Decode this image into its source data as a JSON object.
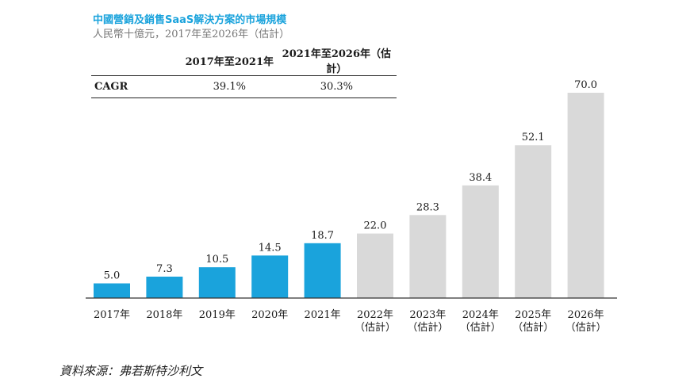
{
  "chart_data": {
    "type": "bar",
    "title": "中國營銷及銷售SaaS解決方案的市場規模",
    "subtitle": "人民幣十億元，2017年至2026年（估計）",
    "categories": [
      "2017年",
      "2018年",
      "2019年",
      "2020年",
      "2021年",
      "2022年\n（估計）",
      "2023年\n（估計）",
      "2024年\n（估計）",
      "2025年\n（估計）",
      "2026年\n（估計）"
    ],
    "values": [
      5.0,
      7.3,
      10.5,
      14.5,
      18.7,
      22.0,
      28.3,
      38.4,
      52.1,
      70.0
    ],
    "value_labels": [
      "5.0",
      "7.3",
      "10.5",
      "14.5",
      "18.7",
      "22.0",
      "28.3",
      "38.4",
      "52.1",
      "70.0"
    ],
    "bar_colors": [
      "#1aa3dc",
      "#1aa3dc",
      "#1aa3dc",
      "#1aa3dc",
      "#1aa3dc",
      "#d9d9d9",
      "#d9d9d9",
      "#d9d9d9",
      "#d9d9d9",
      "#d9d9d9"
    ],
    "ylim": [
      0,
      70
    ],
    "grid": false,
    "xlabel": "",
    "ylabel": ""
  },
  "cagr_table": {
    "headers": [
      "",
      "2017年至2021年",
      "2021年至2026年（估計）"
    ],
    "row_label": "CAGR",
    "values": [
      "39.1%",
      "30.3%"
    ]
  },
  "source": "資料來源：弗若斯特沙利文"
}
